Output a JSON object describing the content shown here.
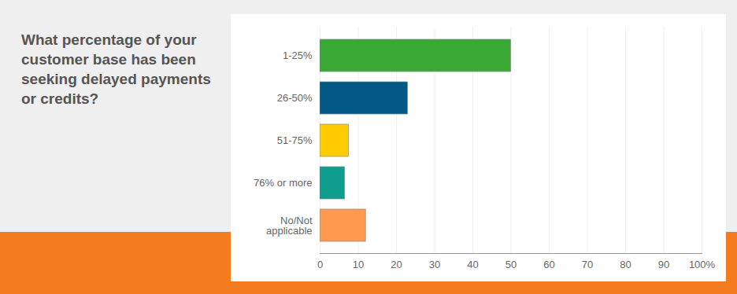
{
  "chart_data": {
    "type": "bar",
    "orientation": "horizontal",
    "title": "What percentage of your customer base has been seeking delayed payments or credits?",
    "categories": [
      "1-25%",
      "26-50%",
      "51-75%",
      "76% or more",
      "No/Not applicable"
    ],
    "values": [
      50,
      23,
      7.5,
      6.5,
      12
    ],
    "colors": [
      "#3aa935",
      "#005a85",
      "#ffcc00",
      "#0f9e8e",
      "#ff9a50"
    ],
    "xlim": [
      0,
      100
    ],
    "xticks": [
      0,
      10,
      20,
      30,
      40,
      50,
      60,
      70,
      80,
      90,
      {
        "value": 100,
        "label": "100%"
      }
    ],
    "grid": true
  }
}
